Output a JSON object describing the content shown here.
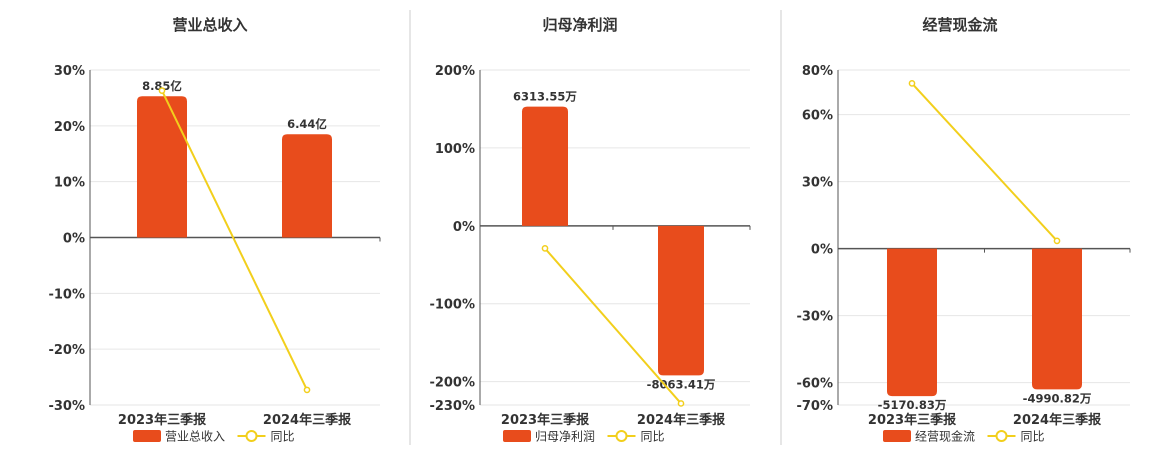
{
  "colors": {
    "bar": "#e84c1c",
    "line": "#f2cf1c",
    "grid": "#e6e6e6",
    "axis": "#555555",
    "divider": "#cccccc",
    "text": "#333333"
  },
  "chart_data": [
    {
      "type": "bar",
      "title": "营业总收入",
      "categories": [
        "2023年三季报",
        "2024年三季报"
      ],
      "series": [
        {
          "name": "营业总收入",
          "type": "bar",
          "values": [
            25.3,
            18.5
          ],
          "labels": [
            "8.85亿",
            "6.44亿"
          ]
        },
        {
          "name": "同比",
          "type": "line",
          "values": [
            26.3,
            -27.3
          ]
        }
      ],
      "yticks": [
        30,
        20,
        10,
        0,
        -10,
        -20,
        -30
      ],
      "ytick_labels": [
        "30%",
        "20%",
        "10%",
        "0%",
        "-10%",
        "-20%",
        "-30%"
      ],
      "ylim": [
        -30,
        30
      ],
      "grid": true,
      "legend": "bottom"
    },
    {
      "type": "bar",
      "title": "归母净利润",
      "categories": [
        "2023年三季报",
        "2024年三季报"
      ],
      "series": [
        {
          "name": "归母净利润",
          "type": "bar",
          "values": [
            153,
            -192
          ],
          "labels": [
            "6313.55万",
            "-8063.41万"
          ]
        },
        {
          "name": "同比",
          "type": "line",
          "values": [
            -29,
            -228
          ]
        }
      ],
      "yticks": [
        200,
        100,
        0,
        -100,
        -200,
        -230
      ],
      "ytick_labels": [
        "200%",
        "100%",
        "0%",
        "-100%",
        "-200%",
        "-230%"
      ],
      "ylim": [
        -230,
        200
      ],
      "grid": true,
      "legend": "bottom"
    },
    {
      "type": "bar",
      "title": "经营现金流",
      "categories": [
        "2023年三季报",
        "2024年三季报"
      ],
      "series": [
        {
          "name": "经营现金流",
          "type": "bar",
          "values": [
            -66,
            -63
          ],
          "labels": [
            "-5170.83万",
            "-4990.82万"
          ]
        },
        {
          "name": "同比",
          "type": "line",
          "values": [
            74,
            3.5
          ]
        }
      ],
      "yticks": [
        80,
        60,
        30,
        0,
        -30,
        -60,
        -70
      ],
      "ytick_labels": [
        "80%",
        "60%",
        "30%",
        "0%",
        "-30%",
        "-60%",
        "-70%"
      ],
      "ylim": [
        -70,
        80
      ],
      "grid": true,
      "legend": "bottom"
    }
  ]
}
